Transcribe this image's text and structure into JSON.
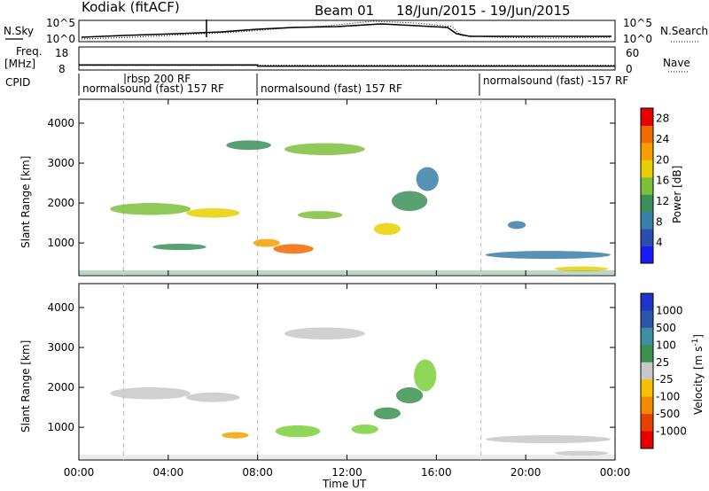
{
  "header": {
    "radar": "Kodiak (fitACF)",
    "beam": "Beam 01",
    "date_range": "18/Jun/2015 - 19/Jun/2015"
  },
  "chart_data": [
    {
      "type": "line",
      "name": "sky-noise-panel",
      "left_label": "N.Sky",
      "right_label": "N.Search",
      "left_ticks": [
        "10^5",
        "10^0"
      ],
      "right_ticks": [
        "10^5",
        "10^0"
      ],
      "yscale": "log"
    },
    {
      "type": "line",
      "name": "frequency-panel",
      "left_label": "Freq.",
      "left_unit": "[MHz]",
      "left_ticks": [
        18,
        8
      ],
      "ylim_left": [
        8,
        18
      ],
      "right_label": "Nave",
      "right_ticks": [
        60,
        0
      ],
      "ylim_right": [
        0,
        60
      ],
      "freq_series": [
        {
          "t": 0,
          "v": 10.2
        },
        {
          "t": 8,
          "v": 10.2
        },
        {
          "t": 8,
          "v": 9.7
        },
        {
          "t": 24,
          "v": 9.7
        }
      ],
      "nave_series": [
        {
          "t": 0,
          "v": 12
        },
        {
          "t": 24,
          "v": 12
        }
      ]
    },
    {
      "type": "table",
      "name": "cpid-bar",
      "label": "CPID",
      "segments": [
        {
          "text": "normalsound (fast) 157 RF",
          "start": 0
        },
        {
          "text": "rbsp 200 RF",
          "start": 2
        },
        {
          "text": "normalsound (fast) 157 RF",
          "start": 8
        },
        {
          "text": "normalsound (fast) -157 RF",
          "start": 18
        }
      ]
    },
    {
      "type": "heatmap",
      "name": "power-panel",
      "ylabel": "Slant Range [km]",
      "y_ticks": [
        1000,
        2000,
        3000,
        4000
      ],
      "ylim": [
        180,
        4600
      ],
      "xlim": [
        0,
        24
      ],
      "x_ticks": [
        "00:00",
        "04:00",
        "08:00",
        "12:00",
        "16:00",
        "20:00",
        "00:00"
      ],
      "colorbar_label": "Power [dB]",
      "colorbar_ticks": [
        4,
        8,
        12,
        16,
        20,
        24,
        28
      ],
      "colorbar_range": [
        0,
        30
      ],
      "colorbar_colors": [
        "#1a1aff",
        "#2c4cb0",
        "#3a7fa8",
        "#3c8f5a",
        "#7cbf3a",
        "#e8d000",
        "#f5a000",
        "#f06a00",
        "#e60000"
      ],
      "blobs": [
        {
          "t": 3.2,
          "r": 1850,
          "dt": 1.8,
          "dr": 150,
          "level": 16
        },
        {
          "t": 6.0,
          "r": 1750,
          "dt": 1.2,
          "dr": 120,
          "level": 20
        },
        {
          "t": 11.0,
          "r": 3350,
          "dt": 1.8,
          "dr": 150,
          "level": 14
        },
        {
          "t": 7.6,
          "r": 3450,
          "dt": 1.0,
          "dr": 120,
          "level": 12
        },
        {
          "t": 9.6,
          "r": 850,
          "dt": 0.9,
          "dr": 120,
          "level": 26
        },
        {
          "t": 8.4,
          "r": 1000,
          "dt": 0.6,
          "dr": 100,
          "level": 22
        },
        {
          "t": 10.8,
          "r": 1700,
          "dt": 1.0,
          "dr": 100,
          "level": 16
        },
        {
          "t": 13.8,
          "r": 1350,
          "dt": 0.6,
          "dr": 150,
          "level": 18
        },
        {
          "t": 14.8,
          "r": 2050,
          "dt": 0.8,
          "dr": 250,
          "level": 12
        },
        {
          "t": 15.6,
          "r": 2600,
          "dt": 0.5,
          "dr": 300,
          "level": 8
        },
        {
          "t": 4.5,
          "r": 900,
          "dt": 1.2,
          "dr": 80,
          "level": 12
        },
        {
          "t": 21.0,
          "r": 700,
          "dt": 2.8,
          "dr": 100,
          "level": 8
        },
        {
          "t": 19.6,
          "r": 1450,
          "dt": 0.4,
          "dr": 100,
          "level": 8
        },
        {
          "t": 22.5,
          "r": 350,
          "dt": 1.2,
          "dr": 60,
          "level": 20
        }
      ]
    },
    {
      "type": "heatmap",
      "name": "velocity-panel",
      "ylabel": "Slant Range [km]",
      "y_ticks": [
        1000,
        2000,
        3000,
        4000
      ],
      "ylim": [
        180,
        4600
      ],
      "xlim": [
        0,
        24
      ],
      "x_ticks": [
        "00:00",
        "04:00",
        "08:00",
        "12:00",
        "16:00",
        "20:00",
        "00:00"
      ],
      "xlabel": "Time UT",
      "colorbar_label": "Velocity [m s",
      "colorbar_unit_exponent": "-1",
      "colorbar_ticks": [
        "1000",
        "500",
        "100",
        "25",
        "-25",
        "-100",
        "-500",
        "-1000"
      ],
      "colorbar_colors": [
        "#2233cc",
        "#2c55a8",
        "#3f8fa0",
        "#3c9050",
        "#c8c8c8",
        "#f5c000",
        "#f58a00",
        "#e84000",
        "#e60000"
      ],
      "blobs": [
        {
          "t": 3.2,
          "r": 1850,
          "dt": 1.8,
          "dr": 150,
          "color": "#c8c8c8"
        },
        {
          "t": 6.0,
          "r": 1750,
          "dt": 1.2,
          "dr": 120,
          "color": "#c8c8c8"
        },
        {
          "t": 11.0,
          "r": 3350,
          "dt": 1.8,
          "dr": 150,
          "color": "#c8c8c8"
        },
        {
          "t": 9.8,
          "r": 900,
          "dt": 1.0,
          "dr": 150,
          "color": "#7ad03c"
        },
        {
          "t": 12.8,
          "r": 950,
          "dt": 0.6,
          "dr": 120,
          "color": "#7ad03c"
        },
        {
          "t": 13.8,
          "r": 1350,
          "dt": 0.6,
          "dr": 150,
          "color": "#3c9050"
        },
        {
          "t": 15.5,
          "r": 2300,
          "dt": 0.5,
          "dr": 400,
          "color": "#7ad03c"
        },
        {
          "t": 14.8,
          "r": 1800,
          "dt": 0.6,
          "dr": 200,
          "color": "#3c9050"
        },
        {
          "t": 7.0,
          "r": 800,
          "dt": 0.6,
          "dr": 80,
          "color": "#f5a000"
        },
        {
          "t": 21.0,
          "r": 700,
          "dt": 2.8,
          "dr": 100,
          "color": "#c8c8c8"
        },
        {
          "t": 22.5,
          "r": 350,
          "dt": 1.2,
          "dr": 60,
          "color": "#c8c8c8"
        }
      ]
    }
  ]
}
